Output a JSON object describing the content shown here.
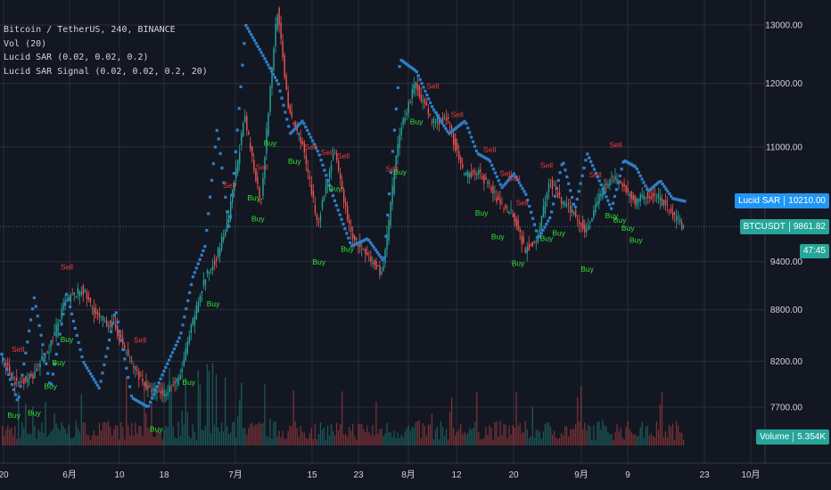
{
  "legend": {
    "symbol": "Bitcoin / TetherUS, 240, BINANCE",
    "volume_study": "Vol (20)",
    "sar_study": "Lucid SAR (0.02, 0.02, 0.2)",
    "signal_study": "Lucid SAR Signal (0.02, 0.02, 0.2, 20)"
  },
  "tags": {
    "sar_name": "Lucid SAR",
    "sar_value": "10210.00",
    "symbol_name": "BTCUSDT",
    "symbol_value": "9861.82",
    "countdown": "47:45",
    "volume_name": "Volume",
    "volume_value": "5.354K"
  },
  "colors": {
    "background": "#131722",
    "grid": "#2a2e39",
    "up": "#26a69a",
    "down": "#ef5350",
    "sar": "#2f7fc8",
    "buy": "#2ee32e",
    "sell": "#f23b3b",
    "sar_tag": "#2196f3",
    "price_tag": "#26a69a"
  },
  "chart_data": {
    "type": "line",
    "title": "Bitcoin / TetherUS, 240, BINANCE",
    "x_tick_labels": [
      "20",
      "6月",
      "10",
      "18",
      "7月",
      "15",
      "23",
      "8月",
      "12",
      "20",
      "9月",
      "9",
      "23",
      "10月"
    ],
    "y_tick_labels": [
      "13000.00",
      "12000.00",
      "11000.00",
      "9400.00",
      "8800.00",
      "8200.00",
      "7700.00"
    ],
    "y_scale": "log",
    "ylim": [
      7350,
      14200
    ],
    "grid": true,
    "series": [
      {
        "name": "BTCUSDT",
        "kind": "candles_approx_close",
        "x": [
          0,
          4,
          8,
          12,
          16,
          20,
          24,
          28,
          32,
          36,
          40,
          44,
          47,
          50,
          53,
          56,
          60,
          64,
          68,
          71,
          74,
          78,
          82,
          86,
          90,
          94,
          98,
          102,
          106,
          110,
          114,
          117,
          120,
          123,
          126,
          129,
          132,
          135,
          138,
          141,
          144,
          147,
          150,
          153,
          156,
          159,
          162,
          165,
          168
        ],
        "values": [
          8250,
          7950,
          8050,
          8350,
          8900,
          9050,
          8700,
          8600,
          8200,
          7900,
          7850,
          8000,
          8600,
          9150,
          9450,
          9950,
          11450,
          10200,
          13300,
          11500,
          11100,
          9900,
          10950,
          9800,
          9450,
          9250,
          11200,
          12000,
          11400,
          11400,
          10550,
          10650,
          10450,
          10150,
          10050,
          9550,
          9700,
          10500,
          10200,
          10050,
          9800,
          10250,
          10550,
          10450,
          10200,
          10300,
          10250,
          10050,
          9850
        ]
      },
      {
        "name": "Lucid SAR",
        "kind": "dots_approx",
        "note_values_from_axis": true,
        "x": [
          0,
          4,
          8,
          12,
          16,
          20,
          24,
          28,
          32,
          36,
          40,
          44,
          47,
          50,
          53,
          56,
          60,
          64,
          68,
          71,
          74,
          78,
          82,
          86,
          90,
          94,
          98,
          102,
          106,
          110,
          114,
          117,
          120,
          123,
          126,
          129,
          132,
          135,
          138,
          141,
          144,
          147,
          150,
          153,
          156,
          159,
          162,
          165,
          168
        ],
        "values": [
          8280,
          7750,
          8950,
          7900,
          9000,
          8200,
          7900,
          8800,
          7800,
          7700,
          8100,
          8500,
          9200,
          9600,
          11300,
          9800,
          13000,
          12500,
          12000,
          11200,
          11400,
          10900,
          10200,
          9600,
          9700,
          9400,
          12400,
          12200,
          11600,
          11200,
          11400,
          10900,
          10800,
          10400,
          10600,
          10300,
          9700,
          10000,
          10800,
          10100,
          10900,
          10500,
          10100,
          10800,
          10700,
          10350,
          10500,
          10250,
          10210
        ]
      },
      {
        "name": "Volume",
        "kind": "histogram",
        "last_value": "5.354K"
      }
    ],
    "annotations": {
      "buy_label": "Buy",
      "sell_label": "Sell",
      "buy_x": [
        3,
        8,
        12,
        14,
        16,
        38,
        46,
        52,
        62,
        63,
        66,
        72,
        78,
        82,
        85,
        98,
        102,
        118,
        122,
        127,
        134,
        137,
        144,
        150,
        152,
        154,
        156
      ],
      "sell_x": [
        4,
        16,
        34,
        56,
        64,
        68,
        76,
        80,
        84,
        96,
        106,
        112,
        120,
        124,
        126,
        128,
        134,
        146,
        151
      ]
    },
    "last_price": 9861.82,
    "sar_last": 10210.0,
    "volume_last": "5.354K"
  }
}
